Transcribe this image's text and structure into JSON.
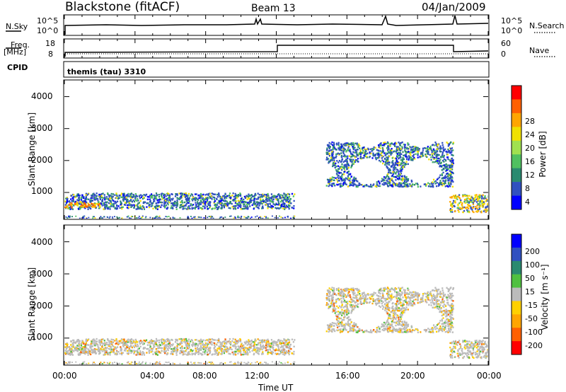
{
  "header": {
    "station": "Blackstone (fitACF)",
    "beam": "Beam 13",
    "date": "04/Jan/2009"
  },
  "strips": {
    "nsky_label": "N.Sky",
    "nsky_ticks": [
      "10^5",
      "10^0"
    ],
    "nsearch_label": "N.Search",
    "nsearch_ticks": [
      "10^5",
      "10^0"
    ],
    "freq_label": "Freq.",
    "freq_unit": "[MHz]",
    "freq_ticks": [
      "18",
      "8"
    ],
    "nave_label": "Nave",
    "nave_ticks": [
      "60",
      "0"
    ],
    "cpid_label": "CPID",
    "cpid_value": "themis (tau) 3310"
  },
  "axes": {
    "x_label": "Time UT",
    "x_ticks": [
      "00:00",
      "04:00",
      "08:00",
      "12:00",
      "16:00",
      "20:00",
      "00:00"
    ],
    "y_label": "Slant Range [km]",
    "y_ticks": [
      "4000",
      "3000",
      "2000",
      "1000"
    ]
  },
  "colorbars": {
    "power": {
      "label": "Power [dB]",
      "ticks": [
        "28",
        "24",
        "20",
        "16",
        "12",
        "8",
        "4"
      ],
      "colors": [
        "#ff0000",
        "#ff6000",
        "#ffa500",
        "#f0e000",
        "#a0e050",
        "#50c060",
        "#2a8a70",
        "#3050c0",
        "#0000ff"
      ]
    },
    "velocity": {
      "label": "Velocity [m s⁻¹]",
      "ticks": [
        "200",
        "100",
        "50",
        "15",
        "-15",
        "-50",
        "-100",
        "-200"
      ],
      "colors": [
        "#0000ff",
        "#3050c0",
        "#2a8a70",
        "#50c040",
        "#bbbbbb",
        "#ffd000",
        "#ffa500",
        "#ff6000",
        "#ff0000"
      ]
    }
  },
  "chart_data": [
    {
      "type": "heatmap",
      "title": "Power",
      "xlabel": "Time UT",
      "ylabel": "Slant Range [km]",
      "xlim": [
        0,
        24
      ],
      "ylim": [
        180,
        4500
      ],
      "regions": [
        {
          "t0": 0.0,
          "t1": 13.0,
          "r0": 500,
          "r1": 1000,
          "level": "low-mid",
          "note": "echo band"
        },
        {
          "t0": 0.0,
          "t1": 2.0,
          "r0": 550,
          "r1": 700,
          "level": "high"
        },
        {
          "t0": 14.8,
          "t1": 22.0,
          "r0": 1200,
          "r1": 2600,
          "level": "low-mid"
        },
        {
          "t0": 21.8,
          "t1": 24.0,
          "r0": 400,
          "r1": 950,
          "level": "mid-high"
        }
      ]
    },
    {
      "type": "heatmap",
      "title": "Velocity",
      "xlabel": "Time UT",
      "ylabel": "Slant Range [km]",
      "xlim": [
        0,
        24
      ],
      "ylim": [
        180,
        4500
      ],
      "regions": [
        {
          "t0": 0.0,
          "t1": 13.0,
          "r0": 500,
          "r1": 1000,
          "level": "near-zero"
        },
        {
          "t0": 14.8,
          "t1": 22.0,
          "r0": 1200,
          "r1": 2600,
          "level": "near-zero"
        },
        {
          "t0": 21.8,
          "t1": 24.0,
          "r0": 400,
          "r1": 950,
          "level": "near-zero"
        }
      ]
    }
  ]
}
